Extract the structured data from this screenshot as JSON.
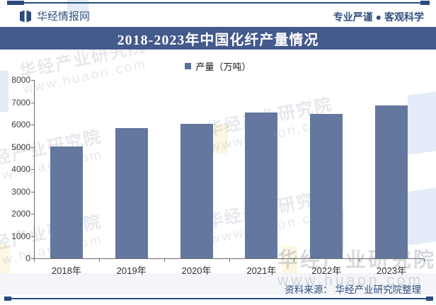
{
  "header": {
    "brand": "华经情报网",
    "slogan": "专业严谨 ● 客观科学"
  },
  "title": "2018-2023年中国化纤产量情况",
  "legend": {
    "label": "产量（万吨）"
  },
  "chart_data": {
    "type": "bar",
    "title": "2018-2023年中国化纤产量情况",
    "categories": [
      "2018年",
      "2019年",
      "2020年",
      "2021年",
      "2022年",
      "2023年"
    ],
    "series": [
      {
        "name": "产量（万吨）",
        "values": [
          5011,
          5827,
          6025,
          6524,
          6488,
          6872
        ]
      }
    ],
    "xlabel": "",
    "ylabel": "",
    "ylim": [
      0,
      8000
    ],
    "ytick_step": 1000,
    "grid": false,
    "legend_position": "top-center",
    "bar_color": "#64779e"
  },
  "footer": {
    "source": "资料来源： 华经产业研究院整理"
  },
  "watermark": {
    "line1": "华经产业研究院",
    "line2": "www.huaon.com"
  },
  "colors": {
    "navy": "#2b4a7d",
    "title_bg": "#44598c",
    "bar": "#64779e",
    "axis": "#6e6e6e",
    "footer_bg": "#f4f5f9"
  }
}
